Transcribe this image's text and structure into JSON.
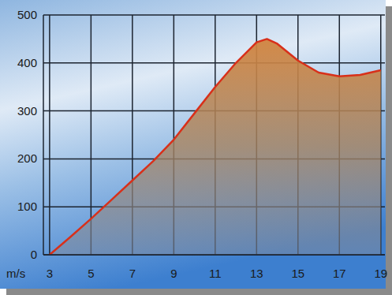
{
  "chart_data": {
    "type": "area",
    "x_label": "m/s",
    "x": [
      3,
      4,
      5,
      6,
      7,
      8,
      9,
      10,
      11,
      12,
      13,
      13.5,
      14,
      15,
      16,
      17,
      18,
      19
    ],
    "values": [
      0,
      37,
      75,
      115,
      155,
      195,
      240,
      295,
      350,
      400,
      443,
      450,
      440,
      405,
      380,
      372,
      375,
      385
    ],
    "color": "#d8301a",
    "xlim": [
      2.7,
      19.2
    ],
    "xticks": [
      3,
      5,
      7,
      9,
      11,
      13,
      15,
      17,
      19
    ],
    "ylim": [
      0,
      500
    ],
    "yticks": [
      0,
      100,
      200,
      300,
      400,
      500
    ],
    "grid": true
  }
}
